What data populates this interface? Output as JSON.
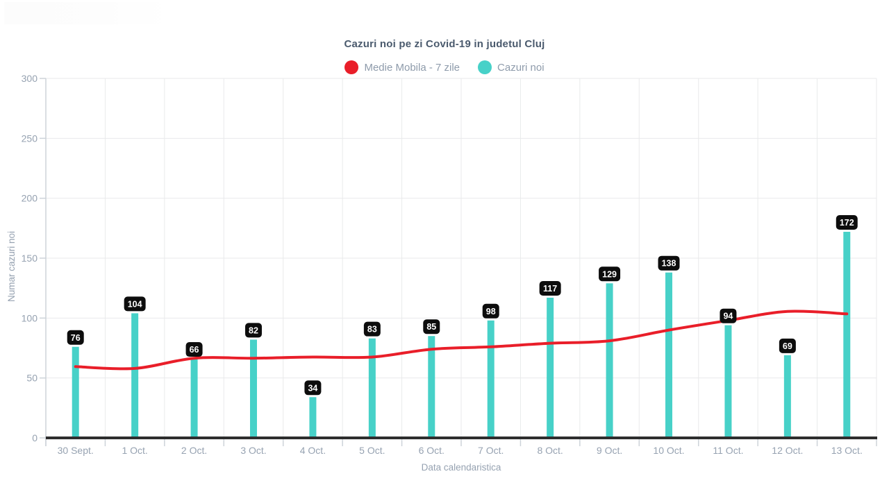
{
  "legend": [
    {
      "label": "Medie Mobila - 7 zile",
      "color": "#e91e29"
    },
    {
      "label": "Cazuri noi",
      "color": "#47d1c8"
    }
  ],
  "chart_data": {
    "type": "bar",
    "title": "Cazuri noi pe zi Covid-19 in judetul Cluj",
    "xlabel": "Data calendaristica",
    "ylabel": "Numar cazuri noi",
    "ylim": [
      0,
      300
    ],
    "y_ticks": [
      0,
      50,
      100,
      150,
      200,
      250,
      300
    ],
    "grid": true,
    "legend_position": "top-center",
    "categories": [
      "30 Sept.",
      "1 Oct.",
      "2 Oct.",
      "3 Oct.",
      "4 Oct.",
      "5 Oct.",
      "6 Oct.",
      "7 Oct.",
      "8 Oct.",
      "9 Oct.",
      "10 Oct.",
      "11 Oct.",
      "12 Oct.",
      "13 Oct."
    ],
    "series": [
      {
        "name": "Cazuri noi",
        "type": "bar",
        "color": "#47d1c8",
        "values": [
          76,
          104,
          66,
          82,
          34,
          83,
          85,
          98,
          117,
          129,
          138,
          94,
          69,
          172
        ],
        "data_labels": true
      },
      {
        "name": "Medie Mobila - 7 zile",
        "type": "line",
        "color": "#e91e29",
        "values": [
          59.5,
          58,
          66.5,
          66.5,
          67.5,
          67.5,
          74,
          76,
          79,
          81,
          90,
          98,
          105.5,
          103.5
        ]
      }
    ]
  },
  "colors": {
    "bar": "#47d1c8",
    "line": "#e91e29",
    "value_label_bg": "#0d0d0d",
    "value_label_text": "#ffffff",
    "tick_text": "#96a2b1",
    "title_text": "#4a5a6d",
    "legend_text": "#8e9bab",
    "grid": "#e9eaeb",
    "axis_light": "#cdd3d9",
    "axis_dark": "#2e2e2e"
  }
}
